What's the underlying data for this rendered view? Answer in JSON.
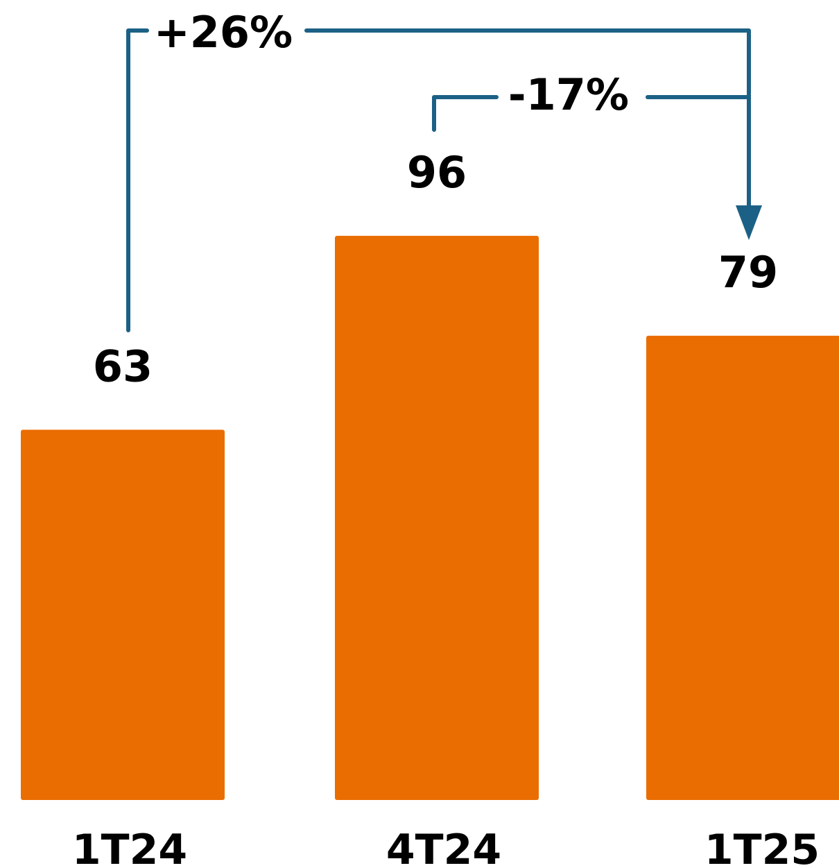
{
  "chart_data": {
    "type": "bar",
    "categories": [
      "1T24",
      "4T24",
      "1T25"
    ],
    "values": [
      63,
      96,
      79
    ],
    "value_labels": [
      "63",
      "96",
      "79"
    ],
    "title": "",
    "xlabel": "",
    "ylabel": "",
    "grid": false,
    "legend": "none",
    "annotations": [
      {
        "text": "+26%",
        "from": "1T24",
        "to": "1T25"
      },
      {
        "text": "-17%",
        "from": "4T24",
        "to": "1T25"
      }
    ]
  },
  "colors": {
    "bar": "#EA6D02",
    "connector": "#1C6185",
    "text": "#000000",
    "background": "#FFFFFF"
  }
}
